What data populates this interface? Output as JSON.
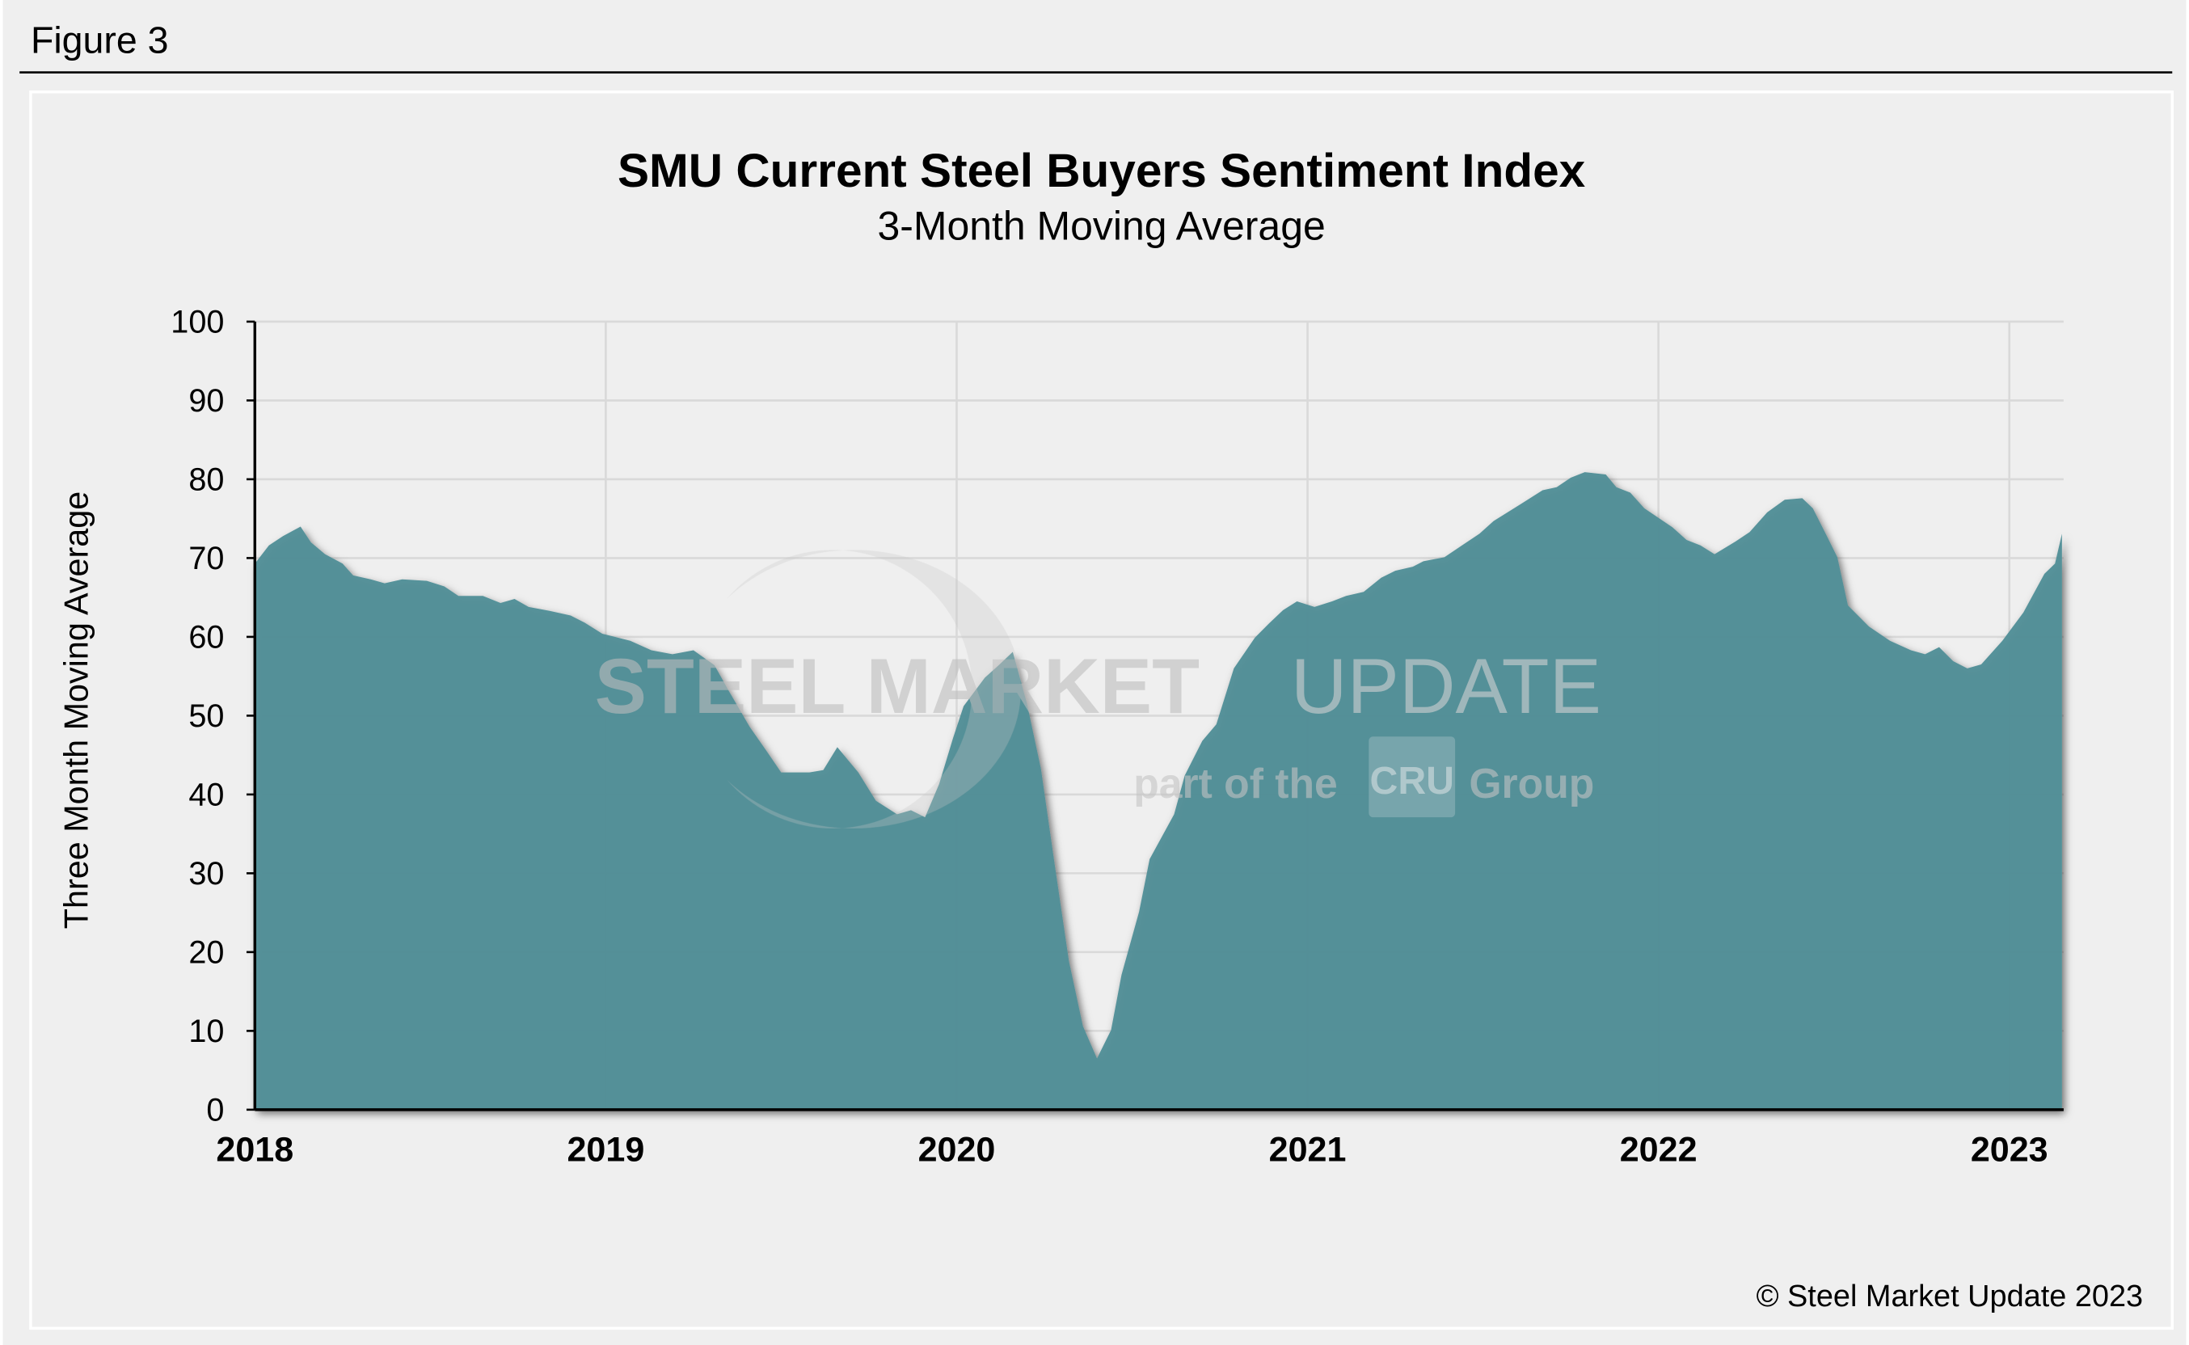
{
  "figure_label": "Figure 3",
  "copyright": "© Steel Market Update 2023",
  "watermark": {
    "brand_bold": "STEEL MARKET",
    "brand_light": "UPDATE",
    "tagline_pre": "part of the",
    "tagline_logo": "CRU",
    "tagline_post": "Group"
  },
  "colors": {
    "area": "#528f98",
    "background": "#efefef",
    "grid": "#d9d9d9",
    "axis": "#000000"
  },
  "chart_data": {
    "type": "area",
    "title": "SMU Current Steel Buyers Sentiment Index",
    "subtitle": "3-Month Moving Average",
    "xlabel": "",
    "ylabel": "Three Month Moving Average",
    "xlim": [
      2018.0,
      2023.15
    ],
    "ylim": [
      0,
      100
    ],
    "x_ticks": [
      2018,
      2019,
      2020,
      2021,
      2022,
      2023
    ],
    "y_ticks": [
      0,
      10,
      20,
      30,
      40,
      50,
      60,
      70,
      80,
      90,
      100
    ],
    "grid": true,
    "legend": "none",
    "x": [
      2018.0,
      2018.04,
      2018.08,
      2018.13,
      2018.16,
      2018.2,
      2018.25,
      2018.28,
      2018.33,
      2018.37,
      2018.42,
      2018.49,
      2018.54,
      2018.58,
      2018.65,
      2018.7,
      2018.74,
      2018.78,
      2018.84,
      2018.9,
      2018.94,
      2018.99,
      2019.07,
      2019.13,
      2019.19,
      2019.25,
      2019.31,
      2019.35,
      2019.41,
      2019.46,
      2019.5,
      2019.58,
      2019.62,
      2019.66,
      2019.72,
      2019.77,
      2019.83,
      2019.87,
      2019.91,
      2019.95,
      2019.99,
      2020.02,
      2020.08,
      2020.12,
      2020.16,
      2020.2,
      2020.24,
      2020.28,
      2020.32,
      2020.36,
      2020.4,
      2020.44,
      2020.47,
      2020.52,
      2020.55,
      2020.62,
      2020.65,
      2020.7,
      2020.74,
      2020.79,
      2020.85,
      2020.89,
      2020.93,
      2020.97,
      2021.02,
      2021.07,
      2021.11,
      2021.16,
      2021.21,
      2021.25,
      2021.3,
      2021.33,
      2021.39,
      2021.44,
      2021.49,
      2021.53,
      2021.61,
      2021.67,
      2021.71,
      2021.75,
      2021.79,
      2021.85,
      2021.88,
      2021.92,
      2021.96,
      2022.0,
      2022.04,
      2022.08,
      2022.12,
      2022.16,
      2022.22,
      2022.26,
      2022.31,
      2022.36,
      2022.41,
      2022.44,
      2022.48,
      2022.51,
      2022.54,
      2022.6,
      2022.66,
      2022.72,
      2022.76,
      2022.8,
      2022.84,
      2022.88,
      2022.92,
      2022.98,
      2023.04,
      2023.1,
      2023.13,
      2023.15
    ],
    "values": [
      69.3,
      71.6,
      72.8,
      74.0,
      72.0,
      70.5,
      69.3,
      67.8,
      67.3,
      66.8,
      67.3,
      67.1,
      66.4,
      65.2,
      65.2,
      64.3,
      64.8,
      63.8,
      63.3,
      62.7,
      61.8,
      60.4,
      59.5,
      58.3,
      57.8,
      58.3,
      56.4,
      53.2,
      48.6,
      45.4,
      42.8,
      42.8,
      43.1,
      46.0,
      42.8,
      39.2,
      37.5,
      38.0,
      37.1,
      41.3,
      47.2,
      51.2,
      54.8,
      56.4,
      58.1,
      51.6,
      43.3,
      30.9,
      18.9,
      10.6,
      6.5,
      10.1,
      17.1,
      25.1,
      31.8,
      37.5,
      42.4,
      46.8,
      48.9,
      56.0,
      59.9,
      61.7,
      63.4,
      64.5,
      63.8,
      64.5,
      65.2,
      65.7,
      67.5,
      68.4,
      68.9,
      69.6,
      70.1,
      71.6,
      73.1,
      74.7,
      76.9,
      78.6,
      79.0,
      80.2,
      80.9,
      80.6,
      79.0,
      78.3,
      76.3,
      75.1,
      73.9,
      72.3,
      71.6,
      70.5,
      72.1,
      73.3,
      75.8,
      77.4,
      77.6,
      76.3,
      72.8,
      70.1,
      64.0,
      61.3,
      59.5,
      58.3,
      57.8,
      58.7,
      56.9,
      56.0,
      56.5,
      59.5,
      63.1,
      68.0,
      69.3,
      73.1
    ]
  }
}
